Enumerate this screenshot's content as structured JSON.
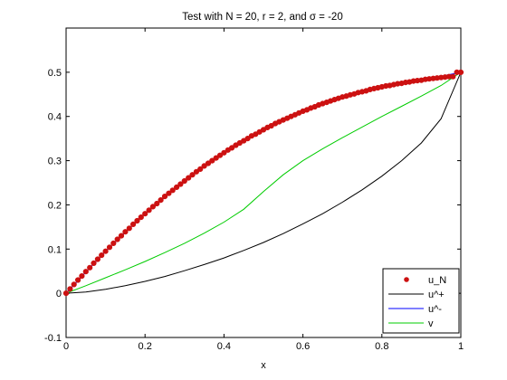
{
  "chart_data": {
    "type": "line",
    "title": "Test with N = 20, r = 2, and σ = -20",
    "xlabel": "x",
    "ylabel": "",
    "xlim": [
      0,
      1
    ],
    "ylim": [
      -0.1,
      0.6
    ],
    "xticks": [
      "0",
      "0.2",
      "0.4",
      "0.6",
      "0.8",
      "1"
    ],
    "xtick_values": [
      0,
      0.2,
      0.4,
      0.6,
      0.8,
      1
    ],
    "yticks": [
      "-0.1",
      "0",
      "0.1",
      "0.2",
      "0.3",
      "0.4",
      "0.5"
    ],
    "ytick_values": [
      -0.1,
      0,
      0.1,
      0.2,
      0.3,
      0.4,
      0.5
    ],
    "grid": false,
    "legend_position": "bottom-right",
    "series": [
      {
        "name": "u_N",
        "color": "#cc1111",
        "style": "markers",
        "x": [
          0,
          0.01,
          0.02,
          0.03,
          0.04,
          0.05,
          0.06,
          0.07,
          0.08,
          0.09,
          0.1,
          0.11,
          0.12,
          0.13,
          0.14,
          0.15,
          0.16,
          0.17,
          0.18,
          0.19,
          0.2,
          0.21,
          0.22,
          0.23,
          0.24,
          0.25,
          0.26,
          0.27,
          0.28,
          0.29,
          0.3,
          0.31,
          0.32,
          0.33,
          0.34,
          0.35,
          0.36,
          0.37,
          0.38,
          0.39,
          0.4,
          0.41,
          0.42,
          0.43,
          0.44,
          0.45,
          0.46,
          0.47,
          0.48,
          0.49,
          0.5,
          0.51,
          0.52,
          0.53,
          0.54,
          0.55,
          0.56,
          0.57,
          0.58,
          0.59,
          0.6,
          0.61,
          0.62,
          0.63,
          0.64,
          0.65,
          0.66,
          0.67,
          0.68,
          0.69,
          0.7,
          0.71,
          0.72,
          0.73,
          0.74,
          0.75,
          0.76,
          0.77,
          0.78,
          0.79,
          0.8,
          0.81,
          0.82,
          0.83,
          0.84,
          0.85,
          0.86,
          0.87,
          0.88,
          0.89,
          0.9,
          0.91,
          0.92,
          0.93,
          0.94,
          0.95,
          0.96,
          0.97,
          0.98,
          0.99,
          1
        ],
        "y": [
          0,
          0.01,
          0.02,
          0.03,
          0.039,
          0.049,
          0.058,
          0.068,
          0.077,
          0.086,
          0.095,
          0.104,
          0.113,
          0.122,
          0.13,
          0.139,
          0.147,
          0.156,
          0.164,
          0.172,
          0.18,
          0.188,
          0.196,
          0.203,
          0.211,
          0.219,
          0.226,
          0.233,
          0.24,
          0.247,
          0.254,
          0.261,
          0.268,
          0.275,
          0.281,
          0.288,
          0.294,
          0.3,
          0.306,
          0.312,
          0.318,
          0.324,
          0.329,
          0.335,
          0.34,
          0.345,
          0.35,
          0.356,
          0.36,
          0.365,
          0.37,
          0.375,
          0.379,
          0.384,
          0.388,
          0.392,
          0.396,
          0.4,
          0.404,
          0.408,
          0.412,
          0.415,
          0.419,
          0.422,
          0.426,
          0.429,
          0.432,
          0.435,
          0.438,
          0.441,
          0.444,
          0.446,
          0.449,
          0.451,
          0.454,
          0.456,
          0.458,
          0.461,
          0.463,
          0.465,
          0.467,
          0.469,
          0.47,
          0.472,
          0.474,
          0.475,
          0.477,
          0.478,
          0.48,
          0.481,
          0.482,
          0.484,
          0.485,
          0.486,
          0.487,
          0.488,
          0.489,
          0.49,
          0.49,
          0.5,
          0.5
        ]
      },
      {
        "name": "u^+",
        "color": "#000000",
        "style": "line",
        "x": [
          0,
          0.05,
          0.1,
          0.15,
          0.2,
          0.25,
          0.3,
          0.35,
          0.4,
          0.45,
          0.5,
          0.55,
          0.6,
          0.65,
          0.7,
          0.75,
          0.8,
          0.85,
          0.9,
          0.95,
          1
        ],
        "y": [
          0,
          0.003,
          0.009,
          0.017,
          0.027,
          0.038,
          0.051,
          0.065,
          0.08,
          0.097,
          0.115,
          0.135,
          0.157,
          0.18,
          0.206,
          0.234,
          0.265,
          0.3,
          0.34,
          0.395,
          0.5
        ]
      },
      {
        "name": "u^-",
        "color": "#0000ff",
        "style": "line",
        "x": [
          0,
          0.1,
          0.2,
          0.3,
          0.4,
          0.5,
          0.6,
          0.7,
          0.8,
          0.9,
          1
        ],
        "y": [
          0,
          0.095,
          0.18,
          0.254,
          0.318,
          0.37,
          0.412,
          0.444,
          0.467,
          0.482,
          0.5
        ]
      },
      {
        "name": "v",
        "color": "#00cc00",
        "style": "line",
        "x": [
          0,
          0.05,
          0.1,
          0.15,
          0.2,
          0.25,
          0.3,
          0.35,
          0.4,
          0.45,
          0.5,
          0.55,
          0.6,
          0.65,
          0.7,
          0.75,
          0.8,
          0.85,
          0.9,
          0.95,
          1
        ],
        "y": [
          0,
          0.017,
          0.035,
          0.053,
          0.072,
          0.092,
          0.113,
          0.136,
          0.161,
          0.19,
          0.23,
          0.268,
          0.3,
          0.327,
          0.352,
          0.376,
          0.4,
          0.423,
          0.446,
          0.47,
          0.5
        ]
      }
    ]
  }
}
